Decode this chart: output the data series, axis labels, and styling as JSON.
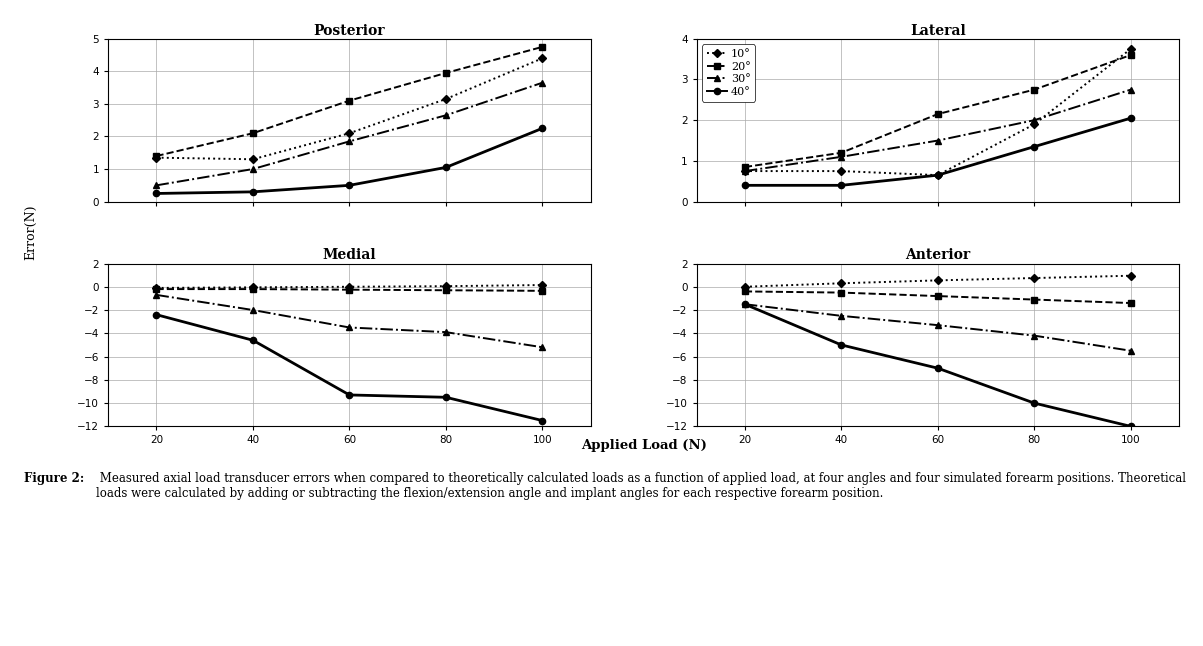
{
  "x": [
    20,
    40,
    60,
    80,
    100
  ],
  "titles": [
    "Posterior",
    "Lateral",
    "Medial",
    "Anterior"
  ],
  "xlabel": "Applied Load (N)",
  "ylabel": "Error(N)",
  "legend_labels": [
    "10°",
    "20°",
    "30°",
    "40°"
  ],
  "posterior": {
    "d10": [
      1.35,
      1.3,
      2.1,
      3.15,
      4.4
    ],
    "d20": [
      1.4,
      2.1,
      3.1,
      3.95,
      4.75
    ],
    "d30": [
      0.5,
      1.0,
      1.85,
      2.65,
      3.65
    ],
    "d40": [
      0.25,
      0.3,
      0.5,
      1.05,
      2.25
    ]
  },
  "lateral": {
    "d10": [
      0.75,
      0.75,
      0.65,
      1.9,
      3.75
    ],
    "d20": [
      0.85,
      1.2,
      2.15,
      2.75,
      3.6
    ],
    "d30": [
      0.75,
      1.1,
      1.5,
      2.0,
      2.75
    ],
    "d40": [
      0.4,
      0.4,
      0.65,
      1.35,
      2.05
    ]
  },
  "medial": {
    "d10": [
      -0.1,
      -0.05,
      0.0,
      0.05,
      0.15
    ],
    "d20": [
      -0.2,
      -0.2,
      -0.25,
      -0.3,
      -0.35
    ],
    "d30": [
      -0.7,
      -2.0,
      -3.5,
      -3.9,
      -5.2
    ],
    "d40": [
      -2.4,
      -4.6,
      -9.3,
      -9.5,
      -11.5
    ]
  },
  "anterior": {
    "d10": [
      0.0,
      0.3,
      0.55,
      0.75,
      0.95
    ],
    "d20": [
      -0.4,
      -0.5,
      -0.8,
      -1.1,
      -1.4
    ],
    "d30": [
      -1.5,
      -2.5,
      -3.3,
      -4.2,
      -5.5
    ],
    "d40": [
      -1.5,
      -5.0,
      -7.0,
      -10.0,
      -12.0
    ]
  },
  "ylims": {
    "Posterior": [
      0,
      5
    ],
    "Lateral": [
      0,
      4
    ],
    "Medial": [
      -12,
      2
    ],
    "Anterior": [
      -12,
      2
    ]
  },
  "yticks": {
    "Posterior": [
      0,
      1,
      2,
      3,
      4,
      5
    ],
    "Lateral": [
      0,
      1,
      2,
      3,
      4
    ],
    "Medial": [
      -12,
      -10,
      -8,
      -6,
      -4,
      -2,
      0,
      2
    ],
    "Anterior": [
      -12,
      -10,
      -8,
      -6,
      -4,
      -2,
      0,
      2
    ]
  },
  "caption_bold": "Figure 2:",
  "caption_normal": " Measured axial load transducer errors when compared to theoretically calculated loads as a function of applied load, at four angles and four simulated forearm positions. Theoretical loads were calculated by adding or subtracting the flexion/extension angle and implant angles for each respective forearm position."
}
